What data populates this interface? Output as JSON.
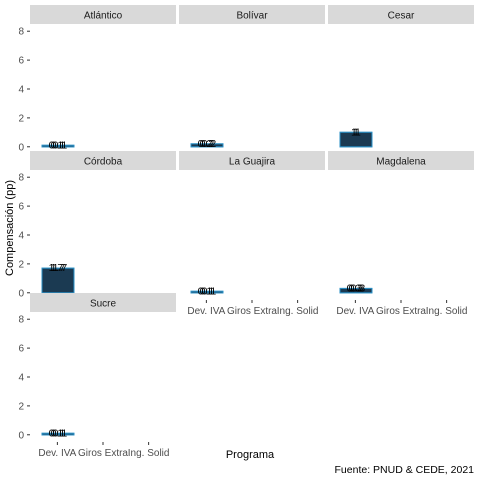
{
  "chart_data": {
    "type": "bar",
    "layout": "facet-wrap-3-columns",
    "xlabel": "Programa",
    "ylabel": "Compensación (pp)",
    "caption": "Fuente: PNUD & CEDE, 2021",
    "categories": [
      "Dev. IVA",
      "Giros Extra",
      "Ing. Solid"
    ],
    "yticks": [
      0,
      2,
      4,
      6,
      8
    ],
    "ylim": [
      -0.5,
      8.5
    ],
    "bar_fill": "#1b3a52",
    "bar_outline": "#2a8fc4",
    "panel_header_bg": "#d9d9d9",
    "facets": [
      {
        "name": "Atlántico",
        "values": [
          0.1,
          0.1,
          0.1
        ],
        "labels": [
          "0.1",
          "0.1",
          "0.1"
        ]
      },
      {
        "name": "Bolívar",
        "values": [
          0.2,
          0.2,
          0.2
        ],
        "labels": [
          "0.2",
          "0.2",
          "0.2"
        ]
      },
      {
        "name": "Cesar",
        "values": [
          1.0,
          1.0,
          1.0
        ],
        "labels": [
          "1",
          "1",
          "1"
        ]
      },
      {
        "name": "Córdoba",
        "values": [
          1.7,
          1.7,
          1.7
        ],
        "labels": [
          "1.7",
          "1.7",
          "1.7"
        ]
      },
      {
        "name": "La Guajira",
        "values": [
          0.1,
          0.1,
          0.1
        ],
        "labels": [
          "0.1",
          "0.1",
          "0.1"
        ]
      },
      {
        "name": "Magdalena",
        "values": [
          0.3,
          0.3,
          0.3
        ],
        "labels": [
          "0.3",
          "0.3",
          "0.3"
        ]
      },
      {
        "name": "Sucre",
        "values": [
          0.1,
          0.1,
          0.1
        ],
        "labels": [
          "0.1",
          "0.1",
          "0.1"
        ]
      }
    ]
  }
}
